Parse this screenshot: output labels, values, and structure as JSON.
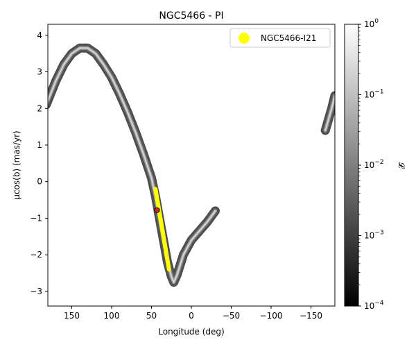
{
  "chart_data": {
    "type": "scatter",
    "title": "NGC5466 - PI",
    "xlabel": "Longitude (deg)",
    "ylabel": "μcos(b) (mas/yr)",
    "xlim": [
      180,
      -180
    ],
    "ylim": [
      -3.4,
      4.3
    ],
    "x_inverted": true,
    "x_ticks": [
      150,
      100,
      50,
      0,
      -50,
      -100,
      -150
    ],
    "x_tick_labels": [
      "150",
      "100",
      "50",
      "0",
      "−50",
      "−100",
      "−150"
    ],
    "y_ticks": [
      4,
      3,
      2,
      1,
      0,
      -1,
      -2,
      -3
    ],
    "y_tick_labels": [
      "4",
      "3",
      "2",
      "1",
      "0",
      "−1",
      "−2",
      "−3"
    ],
    "density_band": {
      "colormap": "gray",
      "ridge_main": [
        [
          182,
          2.1
        ],
        [
          170,
          2.75
        ],
        [
          160,
          3.2
        ],
        [
          150,
          3.5
        ],
        [
          140,
          3.65
        ],
        [
          130,
          3.65
        ],
        [
          120,
          3.5
        ],
        [
          110,
          3.2
        ],
        [
          100,
          2.85
        ],
        [
          90,
          2.4
        ],
        [
          80,
          1.9
        ],
        [
          70,
          1.35
        ],
        [
          60,
          0.75
        ],
        [
          50,
          0.1
        ],
        [
          45,
          -0.4
        ],
        [
          40,
          -1.0
        ],
        [
          35,
          -1.6
        ],
        [
          30,
          -2.2
        ],
        [
          25,
          -2.6
        ],
        [
          22,
          -2.75
        ],
        [
          18,
          -2.55
        ],
        [
          10,
          -2.0
        ],
        [
          0,
          -1.6
        ],
        [
          -10,
          -1.35
        ],
        [
          -20,
          -1.1
        ],
        [
          -30,
          -0.8
        ]
      ],
      "ridge_far": [
        [
          -168,
          1.4
        ],
        [
          -172,
          1.7
        ],
        [
          -176,
          2.0
        ],
        [
          -180,
          2.35
        ]
      ]
    },
    "series": [
      {
        "name": "NGC5466-I21",
        "color": "#ffff00",
        "type": "line",
        "x": [
          45,
          28
        ],
        "y": [
          -0.2,
          -2.4
        ]
      }
    ],
    "progenitor": {
      "x": 43,
      "y": -0.78,
      "color": "#d62728",
      "edge": "#000000"
    },
    "legend": {
      "position": "top-right",
      "entries": [
        "NGC5466-I21"
      ]
    },
    "colorbar": {
      "label": "𝓛",
      "scale": "log",
      "min": 0.0001,
      "max": 1,
      "ticks": [
        1,
        0.1,
        0.01,
        0.001,
        0.0001
      ],
      "tick_bases": [
        "10",
        "10",
        "10",
        "10",
        "10"
      ],
      "tick_exponents": [
        "0",
        "−1",
        "−2",
        "−3",
        "−4"
      ]
    }
  }
}
